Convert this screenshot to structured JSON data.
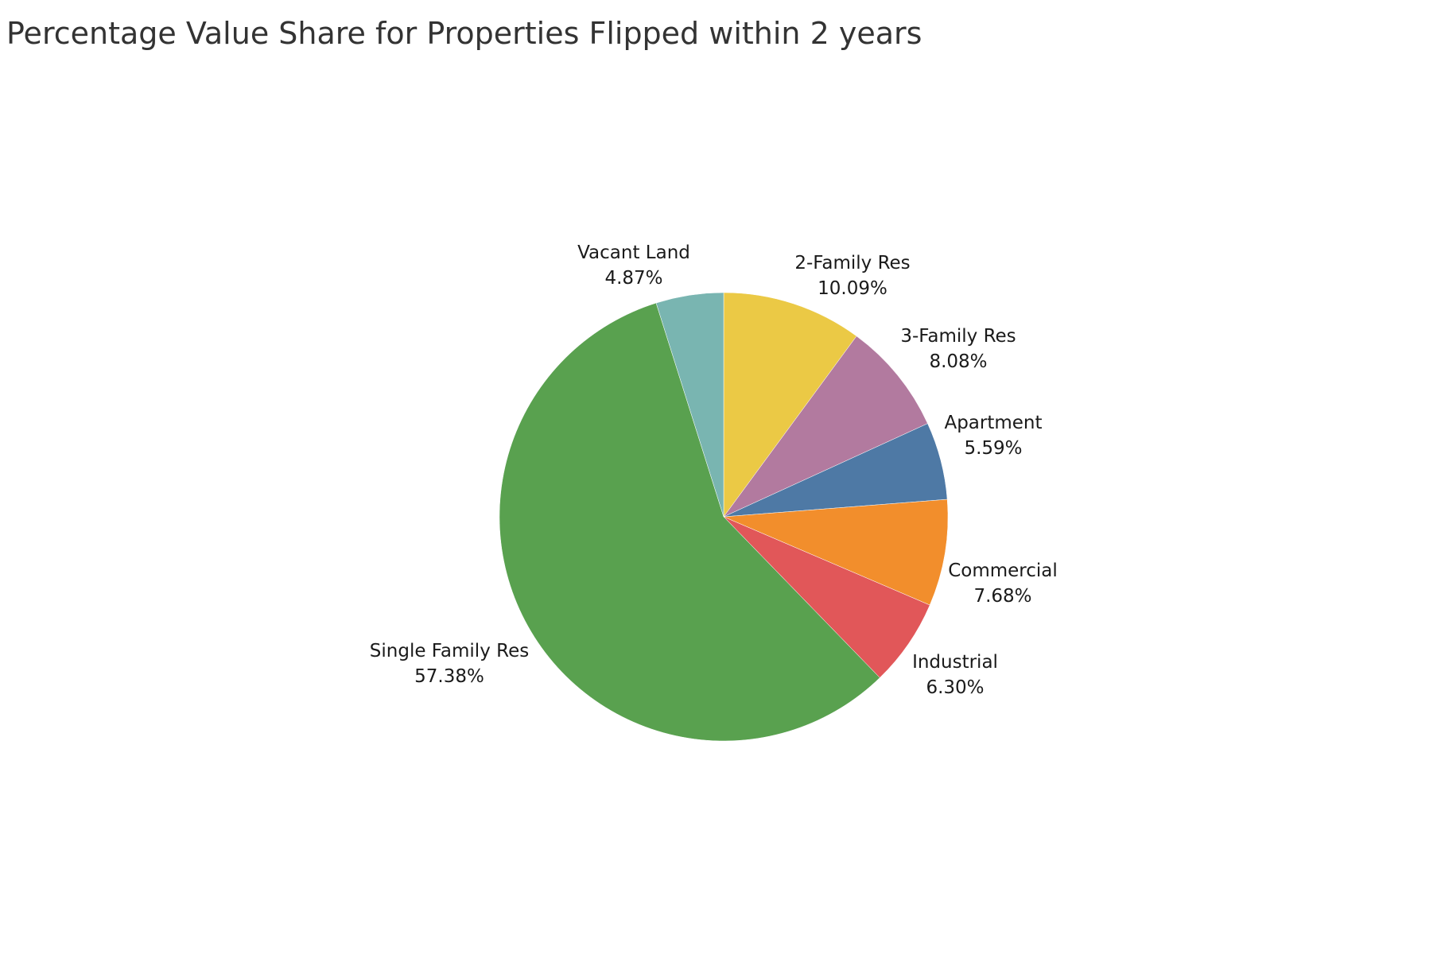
{
  "chart_data": {
    "type": "pie",
    "title": "Percentage Value Share for Properties Flipped within 2 years",
    "start_angle_deg": 0,
    "direction": "clockwise",
    "slices": [
      {
        "label": "2-Family Res",
        "value": 10.09,
        "display": "10.09%",
        "color": "#EBC945"
      },
      {
        "label": "3-Family Res",
        "value": 8.08,
        "display": "8.08%",
        "color": "#B27A9F"
      },
      {
        "label": "Apartment",
        "value": 5.59,
        "display": "5.59%",
        "color": "#4E79A5"
      },
      {
        "label": "Commercial",
        "value": 7.68,
        "display": "7.68%",
        "color": "#F28E2C"
      },
      {
        "label": "Industrial",
        "value": 6.3,
        "display": "6.30%",
        "color": "#E15759"
      },
      {
        "label": "Single Family Res",
        "value": 57.38,
        "display": "57.38%",
        "color": "#59A14F"
      },
      {
        "label": "Vacant Land",
        "value": 4.87,
        "display": "4.87%",
        "color": "#79B5B1"
      }
    ]
  }
}
